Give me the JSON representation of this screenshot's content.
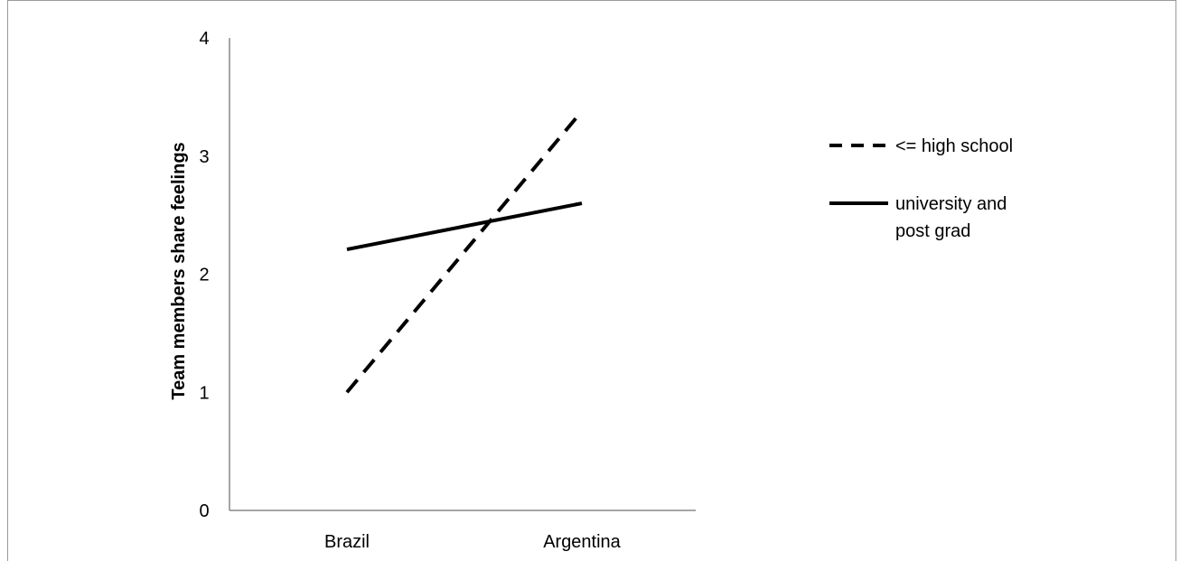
{
  "chart_data": {
    "type": "line",
    "title": "",
    "xlabel": "",
    "ylabel": "Team members share feelings",
    "categories": [
      "Brazil",
      "Argentina"
    ],
    "ylim": [
      0,
      4
    ],
    "yticks": [
      "0",
      "1",
      "2",
      "3",
      "4"
    ],
    "grid": false,
    "legend_position": "right",
    "series": [
      {
        "name": "<= high school",
        "values": [
          1.0,
          3.38
        ],
        "style": "dashed",
        "color": "#000000"
      },
      {
        "name": "university and post grad",
        "name_lines": [
          "university and",
          "post grad"
        ],
        "values": [
          2.21,
          2.6
        ],
        "style": "solid",
        "color": "#000000"
      }
    ]
  }
}
